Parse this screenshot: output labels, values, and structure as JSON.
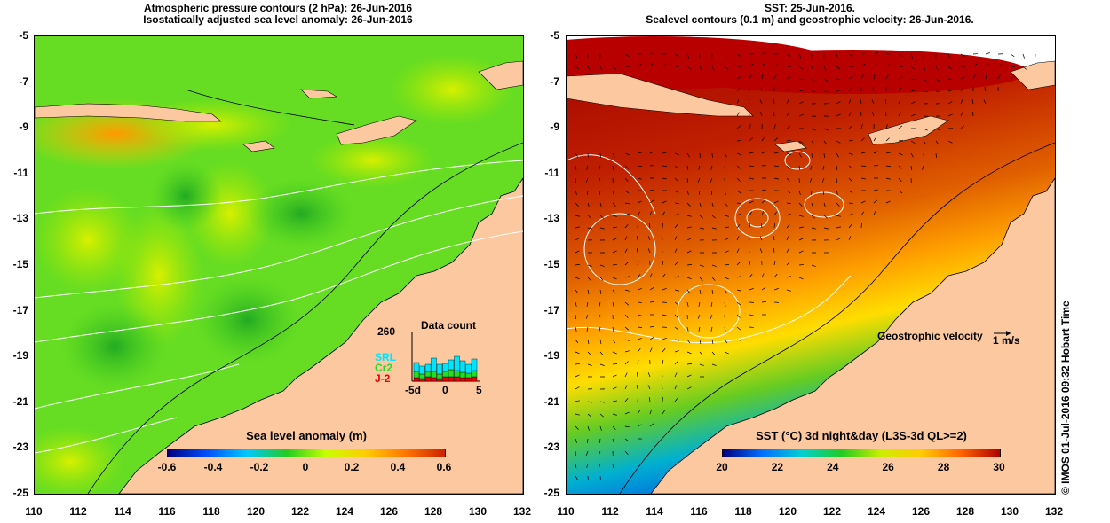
{
  "left_panel": {
    "title_line1": "Atmospheric pressure contours (2 hPa): 26-Jun-2016",
    "title_line2": "Isostatically adjusted sea level anomaly: 26-Jun-2016",
    "colorbar_title": "Sea level anomaly (m)",
    "colorbar_ticks": [
      "-0.6",
      "-0.4",
      "-0.2",
      "0",
      "0.2",
      "0.4",
      "0.6"
    ],
    "data_count": {
      "title": "Data count",
      "max_label": "260",
      "series": [
        {
          "name": "SRL",
          "color": "#00e5ff"
        },
        {
          "name": "Cr2",
          "color": "#22dd22"
        },
        {
          "name": "J-2",
          "color": "#ee0000"
        }
      ],
      "x_ticks": [
        "-5d",
        "0",
        "5"
      ]
    }
  },
  "right_panel": {
    "title_line1": "SST: 25-Jun-2016.",
    "title_line2": "Sealevel contours (0.1 m) and geostrophic velocity: 26-Jun-2016.",
    "velocity_legend": "Geostrophic velocity",
    "velocity_scale": "1 m/s",
    "colorbar_title": "SST (°C) 3d night&day (L3S-3d QL>=2)",
    "colorbar_ticks": [
      "20",
      "22",
      "24",
      "26",
      "28",
      "30"
    ]
  },
  "axes": {
    "y_ticks": [
      "-5",
      "-7",
      "-9",
      "-11",
      "-13",
      "-15",
      "-17",
      "-19",
      "-21",
      "-23",
      "-25"
    ],
    "x_ticks": [
      "110",
      "112",
      "114",
      "116",
      "118",
      "120",
      "122",
      "124",
      "126",
      "128",
      "130",
      "132"
    ]
  },
  "credit": "© IMOS 01-Jul-2016 09:32 Hobart Time",
  "colors": {
    "land": "#fcc8a0",
    "sla_cmap": [
      "#000080",
      "#0050ff",
      "#00c8ff",
      "#22cc22",
      "#c8ff00",
      "#ffcc00",
      "#ff7700",
      "#cc2200"
    ],
    "sst_cmap": [
      "#000080",
      "#0070ff",
      "#00d0d0",
      "#22cc22",
      "#ccee00",
      "#ffcc00",
      "#ff6600",
      "#b00000"
    ]
  }
}
